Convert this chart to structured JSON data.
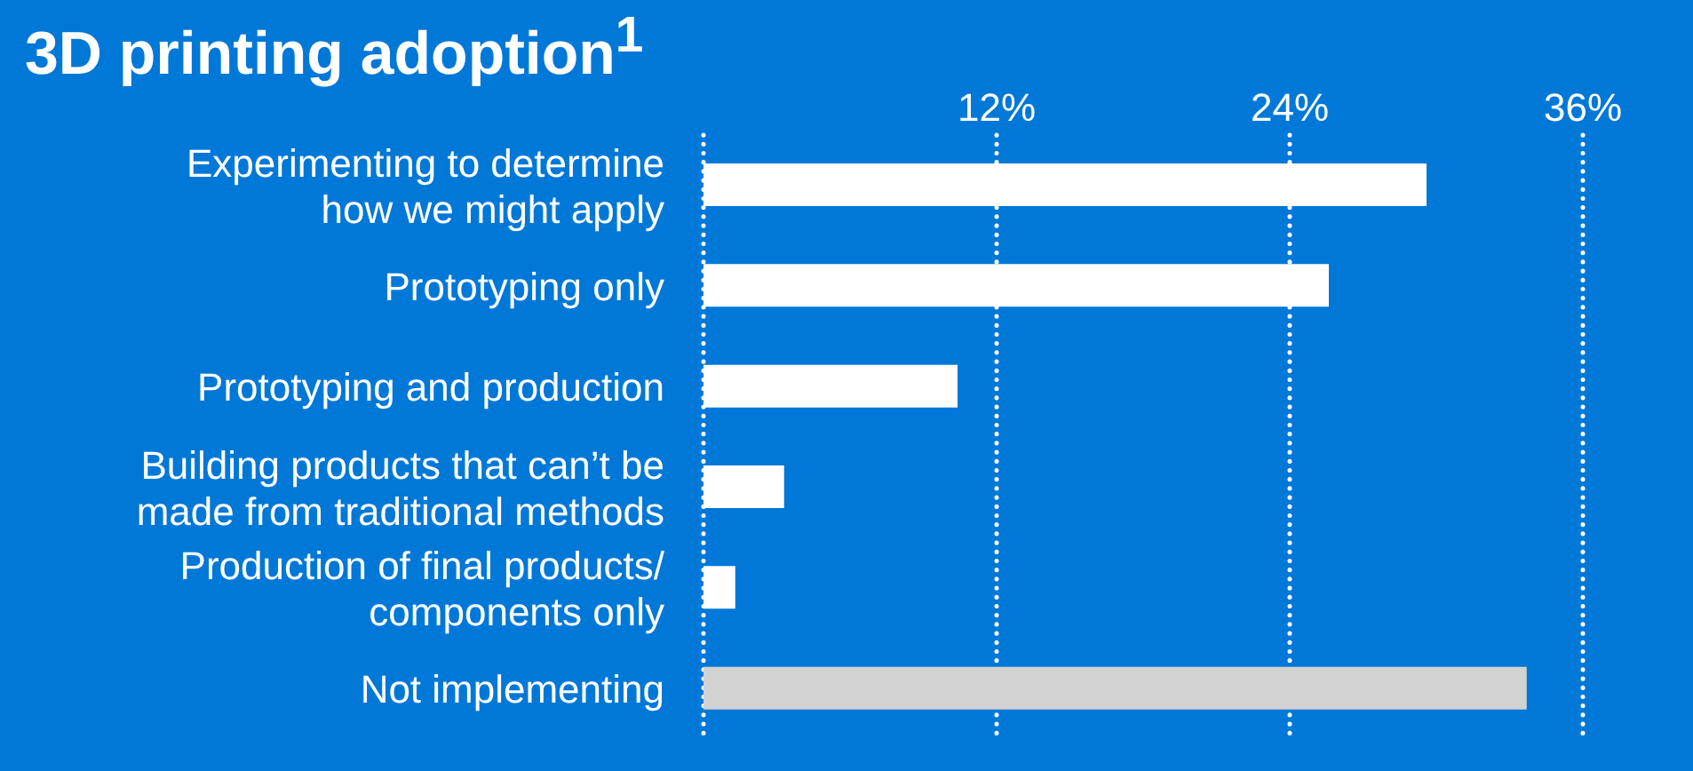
{
  "chart_data": {
    "type": "bar",
    "orientation": "horizontal",
    "title": "3D printing adoption$^{1}$",
    "categories": [
      "Experimenting to determine\nhow we might apply",
      "Prototyping only",
      "Prototyping and production",
      "Building products that can’t be\nmade from traditional methods",
      "Production of final products/\ncomponents only",
      "Not implementing"
    ],
    "values": [
      29.6,
      25.6,
      10.4,
      3.3,
      1.3,
      33.7
    ],
    "colors": [
      "#ffffff",
      "#ffffff",
      "#ffffff",
      "#ffffff",
      "#ffffff",
      "#d2d2d2"
    ],
    "xlim": [
      0,
      36
    ],
    "xticks": [
      {
        "value": 0,
        "label": null
      },
      {
        "value": 12,
        "label": "12%"
      },
      {
        "value": 24,
        "label": "24%"
      },
      {
        "value": 36,
        "label": "36%"
      }
    ],
    "grid": "x"
  }
}
